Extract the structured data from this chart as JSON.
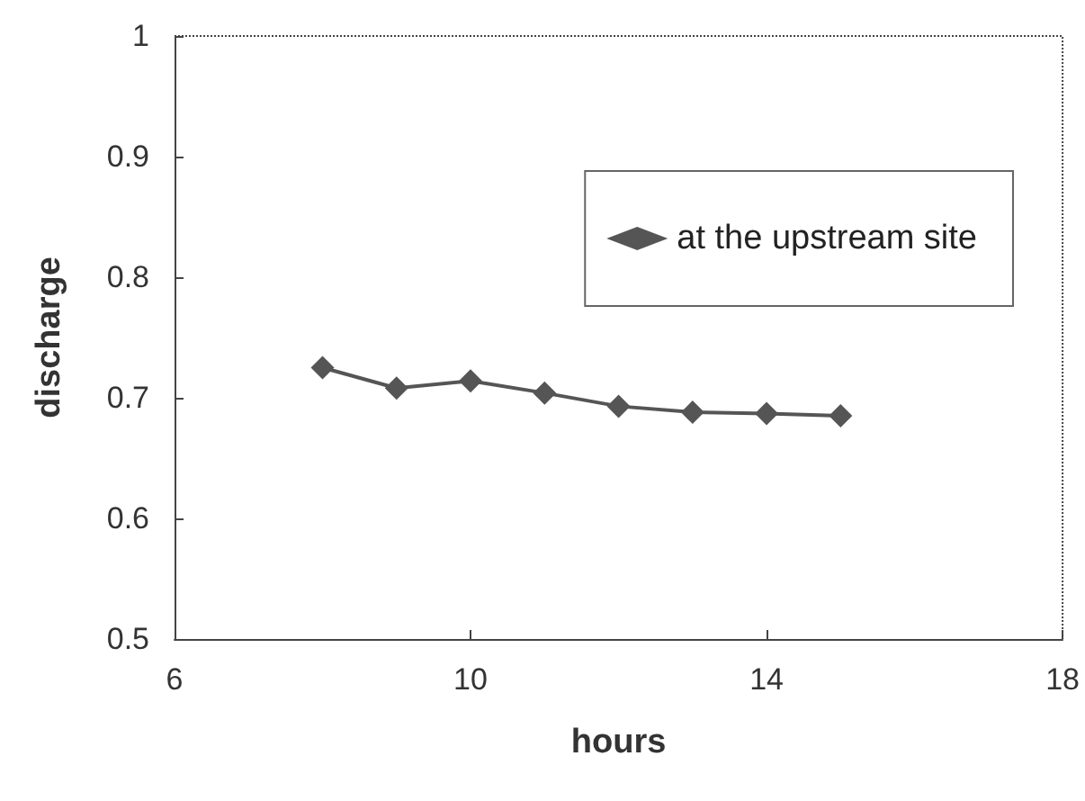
{
  "chart_data": {
    "type": "line",
    "xlabel": "hours",
    "ylabel": "discharge",
    "x": [
      8,
      9,
      10,
      11,
      12,
      13,
      14,
      15
    ],
    "series": [
      {
        "name": "at the upstream site",
        "color": "#555555",
        "values": [
          0.725,
          0.708,
          0.714,
          0.704,
          0.693,
          0.688,
          0.687,
          0.685
        ]
      }
    ],
    "xlim": [
      6,
      18
    ],
    "xticks": [
      6,
      10,
      14,
      18
    ],
    "ylim": [
      0.5,
      1
    ],
    "yticks": [
      0.5,
      0.6,
      0.7,
      0.8,
      0.9,
      1
    ],
    "grid": false,
    "legend": "top right",
    "marker": "diamond",
    "line_style": "solid"
  }
}
